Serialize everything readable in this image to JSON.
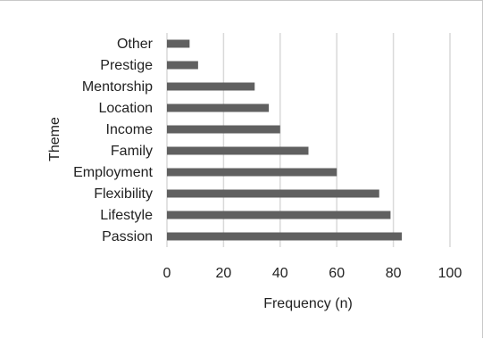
{
  "chart_data": {
    "type": "bar",
    "orientation": "horizontal",
    "categories": [
      "Other",
      "Prestige",
      "Mentorship",
      "Location",
      "Income",
      "Family",
      "Employment",
      "Flexibility",
      "Lifestyle",
      "Passion"
    ],
    "values": [
      8,
      11,
      31,
      36,
      40,
      50,
      60,
      75,
      79,
      83
    ],
    "xlabel": "Frequency (n)",
    "ylabel": "Theme",
    "xlim": [
      0,
      100
    ],
    "xticks": [
      "0",
      "20",
      "40",
      "60",
      "80",
      "100"
    ],
    "grid": true,
    "legend": "none",
    "bar_color": "#606060",
    "grid_color": "#d9d9d9"
  }
}
